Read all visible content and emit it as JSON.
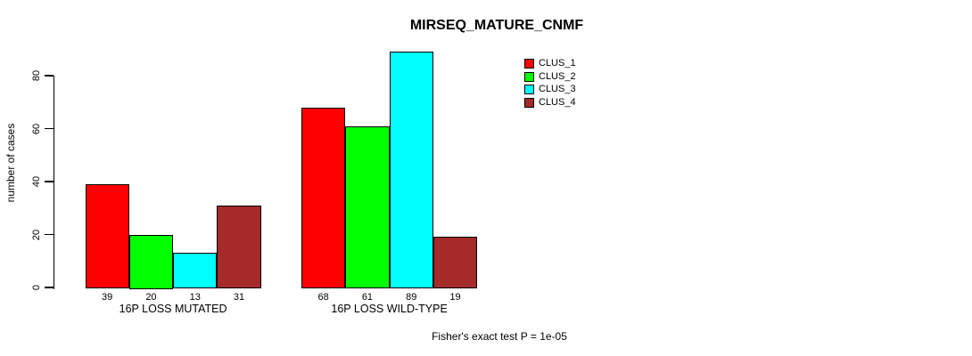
{
  "chart_data": {
    "type": "bar",
    "title": "MIRSEQ_MATURE_CNMF",
    "ylabel": "number of cases",
    "xlabel": "",
    "categories": [
      "16P LOSS MUTATED",
      "16P LOSS WILD-TYPE"
    ],
    "series": [
      {
        "name": "CLUS_1",
        "color": "#FF0000",
        "values": [
          39,
          68
        ]
      },
      {
        "name": "CLUS_2",
        "color": "#00FF00",
        "values": [
          20,
          61
        ]
      },
      {
        "name": "CLUS_3",
        "color": "#00FFFF",
        "values": [
          13,
          89
        ]
      },
      {
        "name": "CLUS_4",
        "color": "#A52A2A",
        "values": [
          31,
          19
        ]
      }
    ],
    "yticks": [
      0,
      20,
      40,
      60,
      80
    ],
    "ylim": [
      0,
      89
    ],
    "show_bar_values": true,
    "grid": false,
    "legend_position": "top-right",
    "annotation": "Fisher's exact test P = 1e-05"
  },
  "colors": {
    "background": "#FFFFFF",
    "axis": "#000000",
    "text": "#000000"
  }
}
